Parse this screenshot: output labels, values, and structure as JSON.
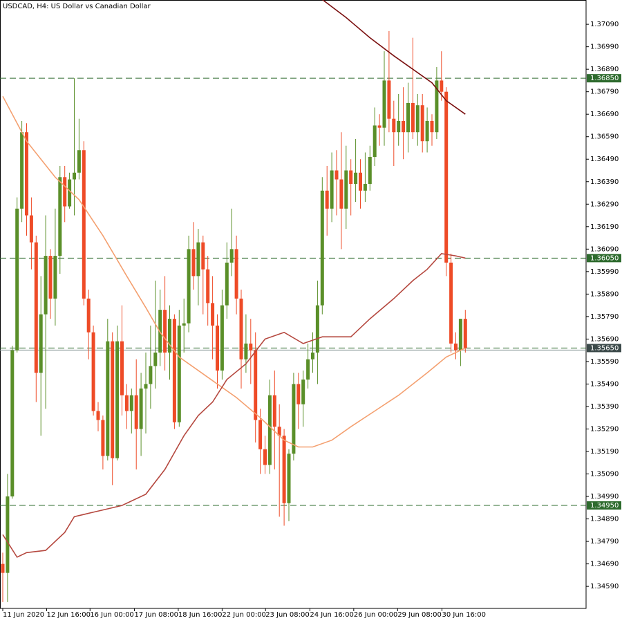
{
  "chart_data": {
    "type": "candlestick",
    "title": "USDCAD, H4:  US Dollar vs Canadian Dollar",
    "up_color": "#5a8f29",
    "down_color": "#ee4b27",
    "open": [
      1.3469,
      1.3465,
      1.3499,
      1.3564,
      1.3627,
      1.3661,
      1.3624,
      1.3612,
      1.3554,
      1.358,
      1.3606,
      1.3587,
      1.3606,
      1.3641,
      1.3628,
      1.364,
      1.3643,
      1.3653,
      1.3587,
      1.3572,
      1.3537,
      1.3533,
      1.3517,
      1.3568,
      1.3516,
      1.3568,
      1.3544,
      1.3537,
      1.3544,
      1.3529,
      1.3547,
      1.3549,
      1.3557,
      1.3563,
      1.3582,
      1.3563,
      1.3578,
      1.3532,
      1.3575,
      1.3576,
      1.3609,
      1.3597,
      1.3612,
      1.36,
      1.3585,
      1.3575,
      1.3555,
      1.3584,
      1.3603,
      1.3609,
      1.3587,
      1.356,
      1.3567,
      1.3564,
      1.3533,
      1.352,
      1.3513,
      1.3544,
      1.353,
      1.3526,
      1.3496,
      1.3518,
      1.3549,
      1.354,
      1.3551,
      1.356,
      1.3563,
      1.3584,
      1.3635,
      1.3627,
      1.3644,
      1.364,
      1.3627,
      1.3644,
      1.3638,
      1.3643,
      1.3635,
      1.3638,
      1.365,
      1.3664,
      1.3663,
      1.3684,
      1.3667,
      1.3661,
      1.3666,
      1.3661,
      1.3674,
      1.3661,
      1.3673,
      1.3657,
      1.3666,
      1.3661,
      1.3684,
      1.3679,
      1.3603,
      1.3567,
      1.3564,
      1.3578
    ],
    "high": [
      1.3474,
      1.3509,
      1.3566,
      1.3632,
      1.3666,
      1.3665,
      1.3632,
      1.3615,
      1.3597,
      1.3624,
      1.3609,
      1.3627,
      1.3646,
      1.3646,
      1.3643,
      1.3685,
      1.3667,
      1.3657,
      1.3591,
      1.3575,
      1.3541,
      1.3535,
      1.3578,
      1.3572,
      1.3575,
      1.3584,
      1.3549,
      1.3547,
      1.356,
      1.3554,
      1.3563,
      1.3575,
      1.3595,
      1.3591,
      1.3597,
      1.3584,
      1.358,
      1.3582,
      1.3587,
      1.3615,
      1.3621,
      1.3618,
      1.3615,
      1.3606,
      1.3597,
      1.358,
      1.3591,
      1.3612,
      1.3627,
      1.3615,
      1.3591,
      1.358,
      1.3578,
      1.3572,
      1.3538,
      1.3526,
      1.3551,
      1.3555,
      1.354,
      1.3529,
      1.352,
      1.3554,
      1.3554,
      1.3555,
      1.3567,
      1.3572,
      1.3595,
      1.3641,
      1.3646,
      1.3652,
      1.3653,
      1.3661,
      1.3655,
      1.3649,
      1.3658,
      1.3649,
      1.3652,
      1.3655,
      1.3672,
      1.3669,
      1.3697,
      1.3706,
      1.3675,
      1.3678,
      1.3681,
      1.3683,
      1.3703,
      1.3678,
      1.3678,
      1.3672,
      1.3669,
      1.369,
      1.3697,
      1.3681,
      1.3607,
      1.3572,
      1.3578,
      1.3582
    ],
    "low": [
      1.3452,
      1.3452,
      1.3498,
      1.3563,
      1.3621,
      1.3615,
      1.36,
      1.3541,
      1.3526,
      1.3538,
      1.3578,
      1.3575,
      1.3598,
      1.3621,
      1.3627,
      1.3624,
      1.364,
      1.3584,
      1.356,
      1.3535,
      1.3528,
      1.3511,
      1.3515,
      1.3504,
      1.3515,
      1.3535,
      1.3529,
      1.3527,
      1.3511,
      1.3517,
      1.3527,
      1.3538,
      1.3547,
      1.3557,
      1.3555,
      1.3551,
      1.3529,
      1.353,
      1.3563,
      1.3572,
      1.3591,
      1.3584,
      1.358,
      1.3575,
      1.356,
      1.3547,
      1.3551,
      1.3578,
      1.3597,
      1.358,
      1.3547,
      1.3554,
      1.3549,
      1.3523,
      1.3509,
      1.3509,
      1.3509,
      1.3511,
      1.349,
      1.3486,
      1.3488,
      1.3515,
      1.3529,
      1.353,
      1.3547,
      1.3554,
      1.3549,
      1.358,
      1.3615,
      1.3621,
      1.3624,
      1.3609,
      1.3618,
      1.3624,
      1.363,
      1.3627,
      1.363,
      1.3635,
      1.3646,
      1.3655,
      1.3655,
      1.3661,
      1.3646,
      1.3655,
      1.3649,
      1.3652,
      1.3658,
      1.3655,
      1.3652,
      1.3652,
      1.3655,
      1.3658,
      1.3675,
      1.3597,
      1.3563,
      1.356,
      1.3557,
      1.3563
    ],
    "close": [
      1.3465,
      1.3499,
      1.3564,
      1.3627,
      1.3661,
      1.3624,
      1.3612,
      1.3554,
      1.358,
      1.3606,
      1.3587,
      1.3606,
      1.3641,
      1.3628,
      1.364,
      1.3643,
      1.3653,
      1.3587,
      1.3572,
      1.3537,
      1.3533,
      1.3517,
      1.3568,
      1.3516,
      1.3568,
      1.3544,
      1.3537,
      1.3544,
      1.3529,
      1.3547,
      1.3549,
      1.3557,
      1.3563,
      1.3582,
      1.3563,
      1.3578,
      1.3532,
      1.3575,
      1.3576,
      1.3609,
      1.3597,
      1.3612,
      1.36,
      1.3585,
      1.3575,
      1.3555,
      1.3584,
      1.3603,
      1.3609,
      1.3587,
      1.356,
      1.3567,
      1.3564,
      1.3533,
      1.352,
      1.3513,
      1.3544,
      1.353,
      1.3526,
      1.3496,
      1.3518,
      1.3549,
      1.354,
      1.3551,
      1.356,
      1.3563,
      1.3584,
      1.3635,
      1.3627,
      1.3644,
      1.364,
      1.3627,
      1.3644,
      1.3638,
      1.3643,
      1.3635,
      1.3638,
      1.365,
      1.3664,
      1.3663,
      1.3684,
      1.3667,
      1.3661,
      1.3666,
      1.3661,
      1.3674,
      1.3661,
      1.3673,
      1.3657,
      1.3666,
      1.3661,
      1.3684,
      1.3679,
      1.3603,
      1.3567,
      1.3564,
      1.3578,
      1.3565
    ],
    "moving_averages": [
      {
        "color": "#f4a070",
        "x": [
          0,
          5,
          11,
          16,
          21,
          26,
          30,
          33,
          37,
          43,
          49,
          54,
          59,
          62,
          65,
          69,
          73,
          78,
          83,
          89,
          93,
          97
        ],
        "values": [
          1.3677,
          1.3657,
          1.3641,
          1.3631,
          1.3615,
          1.3597,
          1.3583,
          1.3572,
          1.3561,
          1.3552,
          1.3543,
          1.3534,
          1.3524,
          1.3521,
          1.3521,
          1.3524,
          1.353,
          1.3537,
          1.3544,
          1.3554,
          1.3561,
          1.3565
        ]
      },
      {
        "color": "#b5483f",
        "x": [
          0,
          3,
          5,
          9,
          13,
          15,
          21,
          25,
          30,
          34,
          38,
          41,
          44,
          47,
          51,
          55,
          59,
          63,
          67,
          73,
          77,
          82,
          86,
          89,
          92,
          95,
          97
        ],
        "values": [
          1.3482,
          1.3472,
          1.3474,
          1.3475,
          1.3483,
          1.349,
          1.3493,
          1.3495,
          1.35,
          1.3511,
          1.3526,
          1.3535,
          1.3541,
          1.3551,
          1.3558,
          1.3569,
          1.3572,
          1.3567,
          1.357,
          1.357,
          1.3578,
          1.3587,
          1.3595,
          1.36,
          1.3607,
          1.3606,
          1.3605
        ]
      },
      {
        "color": "#7a0f0f",
        "x": [
          67,
          72,
          77,
          82,
          86,
          90,
          93,
          97
        ],
        "values": [
          1.372,
          1.3712,
          1.3703,
          1.3695,
          1.3689,
          1.3683,
          1.3675,
          1.3669
        ]
      }
    ],
    "levels": [
      {
        "value": 1.3685,
        "label": "1.36850"
      },
      {
        "value": 1.3605,
        "label": "1.36050"
      },
      {
        "value": 1.3565,
        "label": "1.35650"
      },
      {
        "value": 1.3495,
        "label": "1.34950"
      }
    ],
    "current_price": 1.3565,
    "ylim": [
      1.34492,
      1.37198
    ],
    "yticks": [
      {
        "value": 1.3709,
        "label": "1.37090"
      },
      {
        "value": 1.3699,
        "label": "1.36990"
      },
      {
        "value": 1.3689,
        "label": "1.36890"
      },
      {
        "value": 1.3679,
        "label": "1.36790"
      },
      {
        "value": 1.3669,
        "label": "1.36690"
      },
      {
        "value": 1.3659,
        "label": "1.36590"
      },
      {
        "value": 1.3649,
        "label": "1.36490"
      },
      {
        "value": 1.3639,
        "label": "1.36390"
      },
      {
        "value": 1.3629,
        "label": "1.36290"
      },
      {
        "value": 1.3619,
        "label": "1.36190"
      },
      {
        "value": 1.3609,
        "label": "1.36090"
      },
      {
        "value": 1.3599,
        "label": "1.35990"
      },
      {
        "value": 1.3589,
        "label": "1.35890"
      },
      {
        "value": 1.3579,
        "label": "1.35790"
      },
      {
        "value": 1.3569,
        "label": "1.35690"
      },
      {
        "value": 1.3559,
        "label": "1.35590"
      },
      {
        "value": 1.3549,
        "label": "1.35490"
      },
      {
        "value": 1.3539,
        "label": "1.35390"
      },
      {
        "value": 1.3529,
        "label": "1.35290"
      },
      {
        "value": 1.3519,
        "label": "1.35190"
      },
      {
        "value": 1.3509,
        "label": "1.35090"
      },
      {
        "value": 1.3499,
        "label": "1.34990"
      },
      {
        "value": 1.3489,
        "label": "1.34890"
      },
      {
        "value": 1.3479,
        "label": "1.34790"
      },
      {
        "value": 1.3469,
        "label": "1.34690"
      },
      {
        "value": 1.3459,
        "label": "1.34590"
      }
    ],
    "xticks": [
      {
        "value": 0,
        "label": "11 Jun 2020"
      },
      {
        "value": 9.2,
        "label": "12 Jun 16:00"
      },
      {
        "value": 18.3,
        "label": "16 Jun 00:00"
      },
      {
        "value": 27.6,
        "label": "17 Jun 08:00"
      },
      {
        "value": 36.8,
        "label": "18 Jun 16:00"
      },
      {
        "value": 46.0,
        "label": "22 Jun 00:00"
      },
      {
        "value": 55.1,
        "label": "23 Jun 08:00"
      },
      {
        "value": 64.4,
        "label": "24 Jun 16:00"
      },
      {
        "value": 73.6,
        "label": "26 Jun 00:00"
      },
      {
        "value": 82.8,
        "label": "29 Jun 08:00"
      },
      {
        "value": 92.1,
        "label": "30 Jun 16:00"
      }
    ]
  }
}
